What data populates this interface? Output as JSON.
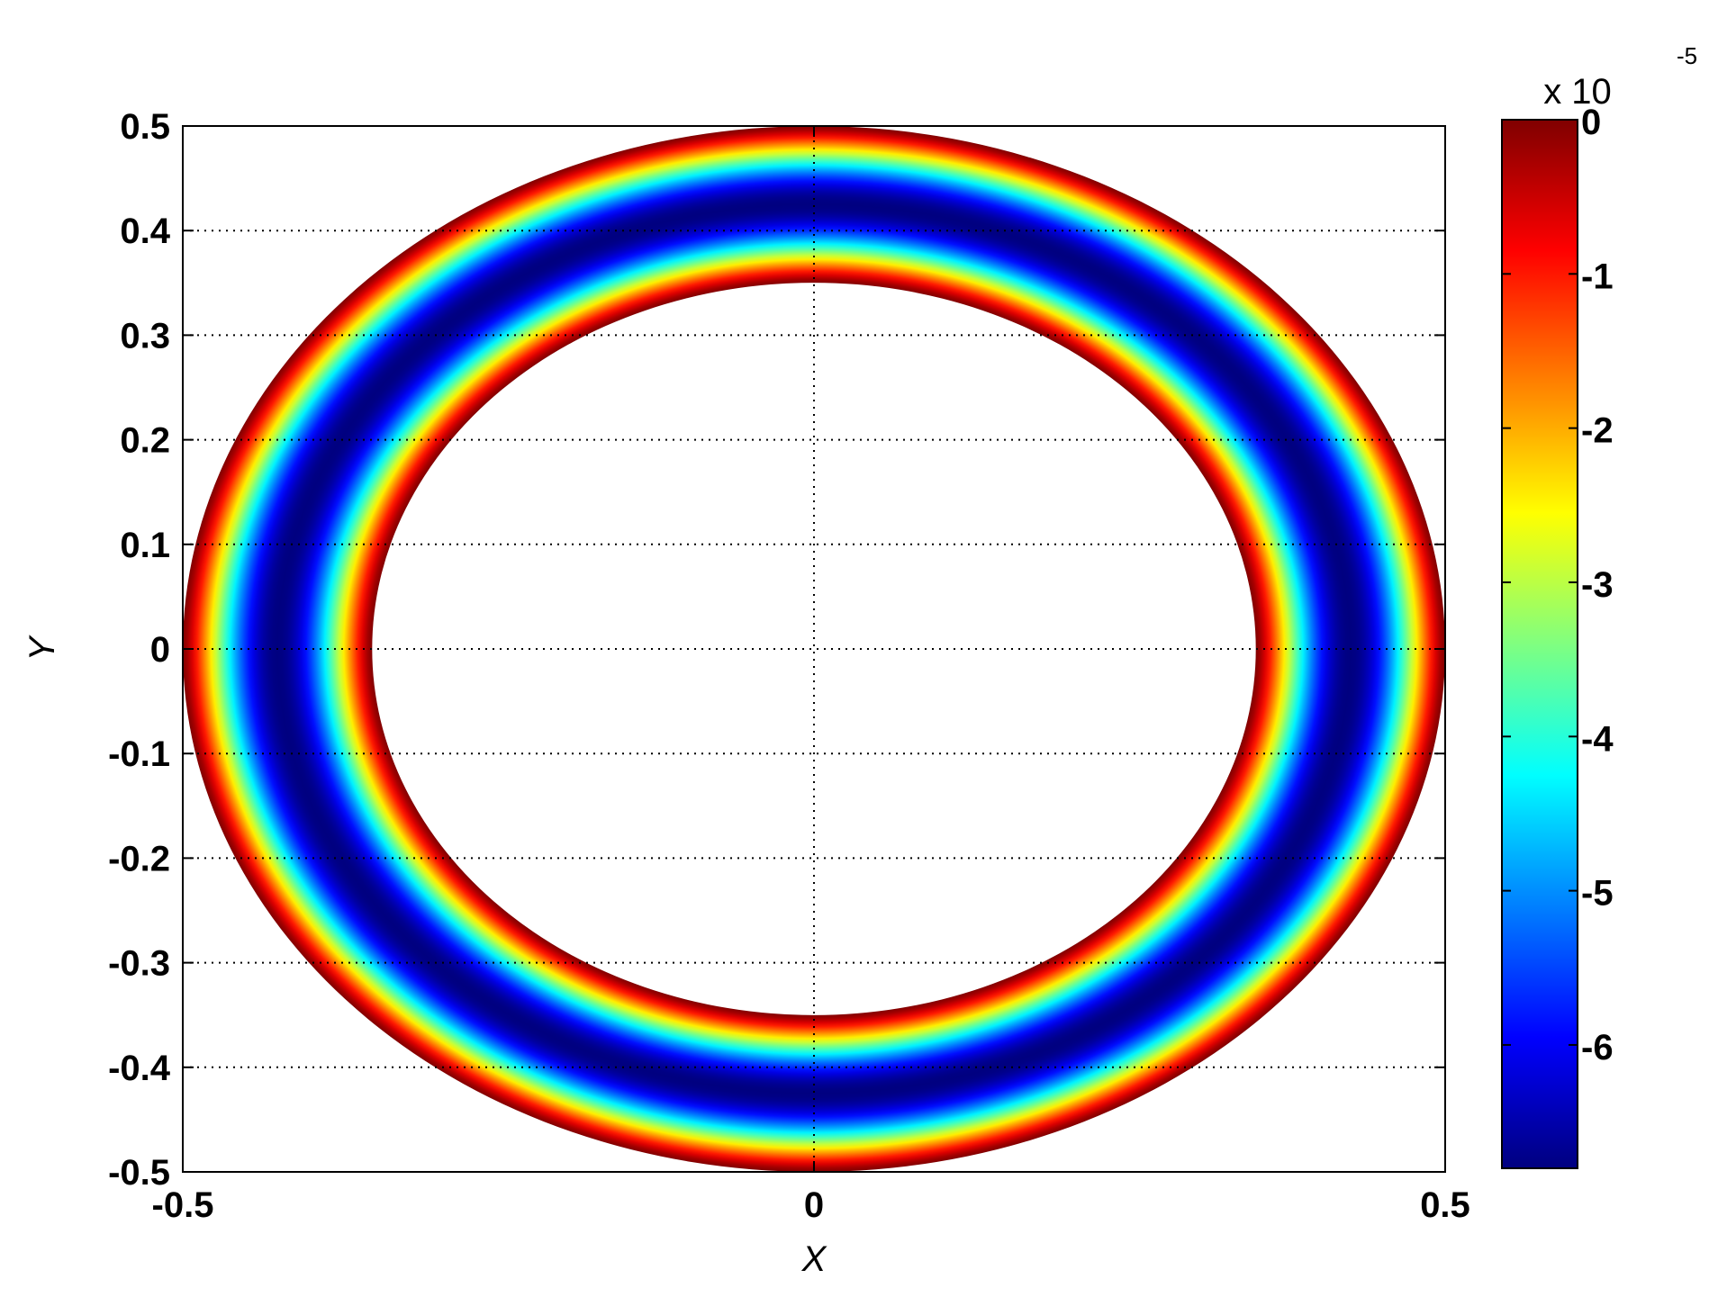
{
  "chart_data": {
    "type": "heatmap",
    "title": "",
    "xlabel": "X",
    "ylabel": "Y",
    "xlim": [
      -0.5,
      0.5
    ],
    "ylim": [
      -0.5,
      0.5
    ],
    "x_ticks": [
      -0.5,
      0,
      0.5
    ],
    "x_tick_labels": [
      "-0.5",
      "0",
      "0.5"
    ],
    "y_ticks": [
      0.5,
      0.4,
      0.3,
      0.2,
      0.1,
      0,
      -0.1,
      -0.2,
      -0.3,
      -0.4,
      -0.5
    ],
    "y_tick_labels": [
      "0.5",
      "0.4",
      "0.3",
      "0.2",
      "0.1",
      "0",
      "-0.1",
      "-0.2",
      "-0.3",
      "-0.4",
      "-0.5"
    ],
    "grid_x": [
      -0.5,
      0,
      0.5
    ],
    "grid_y": [
      0.5,
      0.4,
      0.3,
      0.2,
      0.1,
      0,
      -0.1,
      -0.2,
      -0.3,
      -0.4,
      -0.5
    ],
    "grid": true,
    "grid_style": "dotted",
    "field": {
      "shape": "annulus",
      "center": [
        0,
        0
      ],
      "outer_radius": 0.5,
      "inner_radius": 0.35,
      "min_value": -6.8e-05,
      "max_value": 0,
      "profile": "minimum in mid-ring, rising to 0 at both inner and outer edges"
    },
    "colorbar": {
      "colormap": "jet",
      "range": [
        -6.8,
        0
      ],
      "ticks": [
        0,
        -1,
        -2,
        -3,
        -4,
        -5,
        -6
      ],
      "tick_labels": [
        "0",
        "-1",
        "-2",
        "-3",
        "-4",
        "-5",
        "-6"
      ],
      "multiplier_label": "x 10",
      "multiplier_exponent": "-5",
      "placement": "right"
    }
  }
}
